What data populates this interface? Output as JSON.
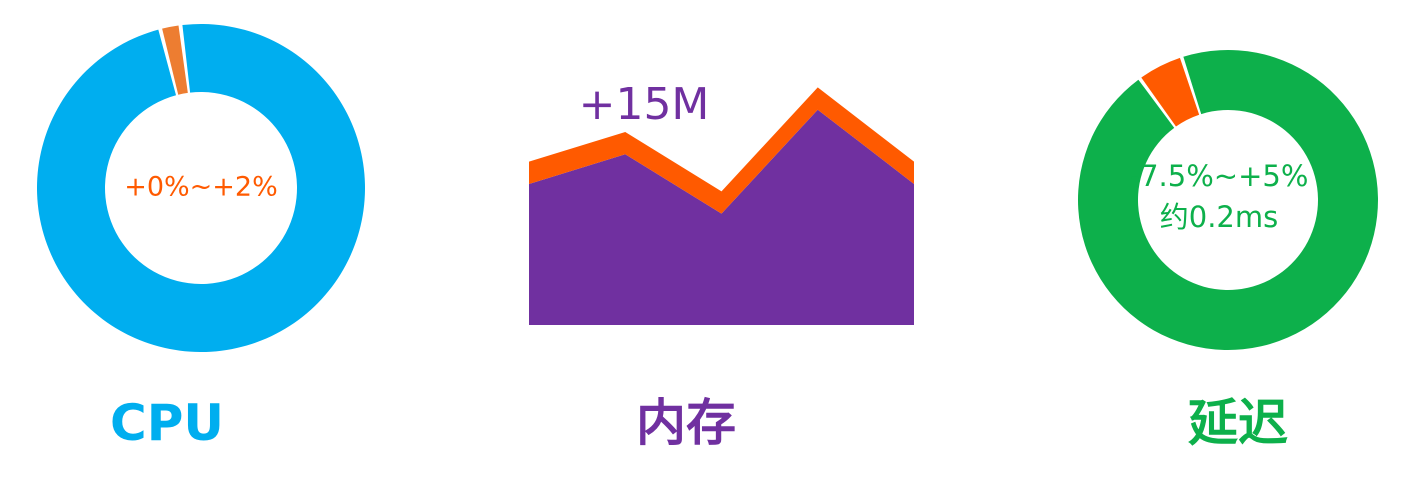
{
  "chart_data": [
    {
      "type": "pie",
      "variant": "donut",
      "caption": "CPU",
      "center_label": "+0%~+2%",
      "slices": [
        {
          "value": 98,
          "color": "#00AEEF"
        },
        {
          "value": 2,
          "color": "#ED7D31"
        }
      ],
      "colors": {
        "caption": "#00AEEF",
        "center_label": "#FF5A00"
      }
    },
    {
      "type": "area",
      "stacked": true,
      "caption": "内存",
      "annotation": "+15M",
      "x": [
        1,
        2,
        3,
        4,
        5
      ],
      "series": [
        {
          "values": [
            38,
            46,
            30,
            58,
            38
          ],
          "color": "#7030A0"
        },
        {
          "values": [
            6,
            6,
            6,
            6,
            6
          ],
          "color": "#FF5A00"
        }
      ],
      "ylim": [
        0,
        66
      ],
      "colors": {
        "caption": "#7030A0",
        "annotation": "#7030A0"
      }
    },
    {
      "type": "pie",
      "variant": "donut",
      "caption": "延迟",
      "center_label": [
        "-7.5%~+5%",
        "约0.2ms"
      ],
      "slices": [
        {
          "value": 95,
          "color": "#0DB04B"
        },
        {
          "value": 5,
          "color": "#FF5A00"
        }
      ],
      "colors": {
        "caption": "#0DB04B",
        "center_label": "#0DB04B"
      }
    }
  ]
}
